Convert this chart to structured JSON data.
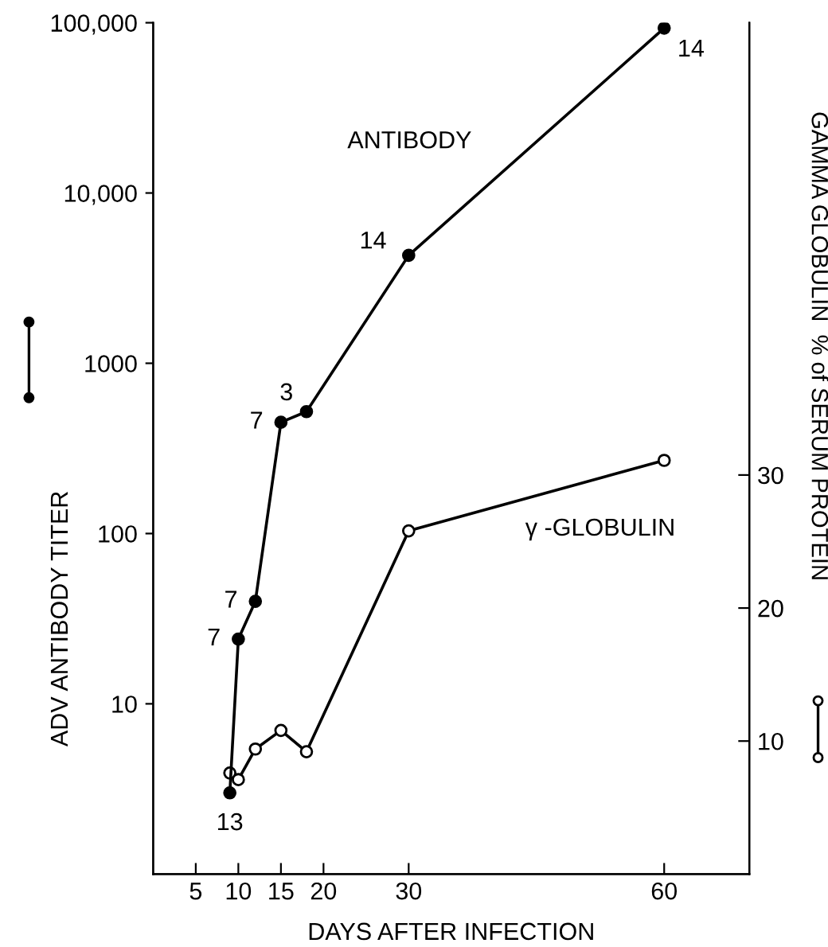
{
  "chart_data": {
    "type": "line",
    "xlabel": "DAYS AFTER INFECTION",
    "ylabel": "ADV ANTIBODY TITER",
    "y2label": "GAMMA GLOBULIN  % of SERUM PROTEIN",
    "xlim": [
      0,
      70
    ],
    "xticks": [
      5,
      10,
      15,
      20,
      30,
      60
    ],
    "ylim": [
      1,
      100000
    ],
    "yticks": [
      10,
      100,
      1000,
      {
        "value": 10000,
        "label": "10,000"
      },
      {
        "value": 100000,
        "label": "100,000"
      }
    ],
    "log": "y",
    "y2lim": [
      0,
      64
    ],
    "y2ticks": [
      10,
      20,
      30
    ],
    "marker": "circle",
    "line_style": "solid",
    "grid": false,
    "legend": false,
    "series": [
      {
        "color": "#000000",
        "x": [
          9,
          10,
          12,
          15,
          18,
          30,
          60
        ],
        "values": [
          3.0,
          24,
          40,
          450,
          520,
          4300,
          93000
        ]
      },
      {
        "color": "#000000",
        "axis": "y2",
        "x": [
          9,
          10,
          12,
          15,
          18,
          30,
          60
        ],
        "values": [
          7.6,
          7.1,
          9.4,
          10.8,
          9.2,
          25.8,
          31.1
        ]
      }
    ],
    "annotations": [
      {
        "text": "13",
        "x": 9,
        "y": 3.0
      },
      {
        "text": "7",
        "x": 10,
        "y": 24
      },
      {
        "text": "7",
        "x": 12,
        "y": 40
      },
      {
        "text": "7",
        "x": 15,
        "y": 450
      },
      {
        "text": "3",
        "x": 18,
        "y": 520
      },
      {
        "text": "14",
        "x": 30,
        "y": 4300
      },
      {
        "text": "14",
        "x": 60,
        "y": 93000
      },
      "ANTIBODY",
      "γ -GLOBULIN"
    ]
  }
}
